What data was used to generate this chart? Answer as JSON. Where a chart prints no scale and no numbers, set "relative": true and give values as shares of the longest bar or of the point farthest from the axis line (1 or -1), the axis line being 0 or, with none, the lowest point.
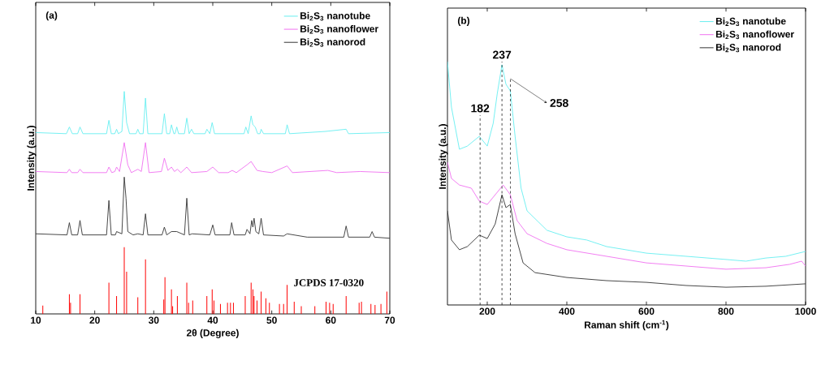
{
  "chart_data": [
    {
      "type": "line",
      "title": "(a)",
      "xlabel": "2θ (Degree)",
      "ylabel": "Intensity (a.u.)",
      "relative": true,
      "xlim": [
        10,
        70
      ],
      "xticks": [
        10,
        20,
        30,
        40,
        50,
        60,
        70
      ],
      "legend": "top right",
      "series": [
        {
          "name": "Bi$_{2}$S$_{3}$ nanotube",
          "color": "#66eef0",
          "x": [
            10,
            15.2,
            15.7,
            16.2,
            17.1,
            17.5,
            18,
            22,
            22.4,
            22.8,
            23.4,
            23.7,
            24,
            24.6,
            25,
            25.4,
            25.9,
            27,
            27.3,
            27.6,
            28.2,
            28.6,
            29,
            31.4,
            31.8,
            32.2,
            32.7,
            33,
            33.4,
            33.6,
            33.9,
            34.2,
            35.2,
            35.6,
            36,
            36.4,
            36.8,
            38.7,
            39,
            39.5,
            39.9,
            40.3,
            45.3,
            45.6,
            46,
            46.5,
            46.8,
            47.2,
            47.6,
            48,
            48.2,
            48.6,
            52.3,
            52.6,
            53,
            59,
            62.6,
            63,
            70
          ],
          "values": [
            0.815,
            0.81,
            0.84,
            0.81,
            0.81,
            0.84,
            0.81,
            0.81,
            0.87,
            0.81,
            0.81,
            0.83,
            0.81,
            0.82,
            1.0,
            0.86,
            0.81,
            0.81,
            0.83,
            0.81,
            0.81,
            0.97,
            0.81,
            0.81,
            0.9,
            0.81,
            0.81,
            0.85,
            0.81,
            0.81,
            0.84,
            0.81,
            0.81,
            0.88,
            0.81,
            0.83,
            0.81,
            0.81,
            0.83,
            0.81,
            0.86,
            0.81,
            0.81,
            0.84,
            0.81,
            0.89,
            0.85,
            0.84,
            0.81,
            0.81,
            0.83,
            0.81,
            0.81,
            0.85,
            0.81,
            0.82,
            0.83,
            0.81,
            0.815
          ]
        },
        {
          "name": "Bi$_{2}$S$_{3}$ nanoflower",
          "color": "#f070f0",
          "x": [
            10,
            15.3,
            15.7,
            16.1,
            17.1,
            17.5,
            18,
            22,
            22.4,
            22.9,
            23.4,
            23.7,
            24.2,
            25,
            25.6,
            26.2,
            27.3,
            27.9,
            28.6,
            29.2,
            31.3,
            31.8,
            32.4,
            33,
            33.5,
            34,
            34.6,
            35.6,
            36.4,
            39,
            40,
            41,
            42.6,
            43.3,
            44,
            45.8,
            46.5,
            47.5,
            48.5,
            50,
            52.6,
            53.5,
            59.5,
            61,
            65,
            70
          ],
          "values": [
            0.64,
            0.635,
            0.65,
            0.635,
            0.635,
            0.65,
            0.635,
            0.635,
            0.66,
            0.635,
            0.64,
            0.66,
            0.64,
            0.77,
            0.67,
            0.635,
            0.65,
            0.64,
            0.77,
            0.635,
            0.64,
            0.7,
            0.645,
            0.66,
            0.64,
            0.65,
            0.635,
            0.66,
            0.635,
            0.64,
            0.66,
            0.635,
            0.635,
            0.645,
            0.635,
            0.67,
            0.685,
            0.645,
            0.64,
            0.635,
            0.665,
            0.635,
            0.645,
            0.635,
            0.64,
            0.635
          ]
        },
        {
          "name": "Bi$_{2}$S$_{3}$ nanorod",
          "color": "#333333",
          "x": [
            10,
            15.3,
            15.7,
            16.1,
            17.1,
            17.5,
            17.9,
            22,
            22.4,
            22.8,
            23.5,
            23.7,
            24.6,
            25,
            25.3,
            25.6,
            26.5,
            27.3,
            28.2,
            28.6,
            29,
            31.4,
            31.8,
            32.2,
            33,
            33.9,
            35.2,
            35.6,
            36,
            36.5,
            39.5,
            40,
            40.4,
            42.9,
            43.2,
            43.6,
            45.5,
            45.8,
            46.3,
            46.6,
            46.8,
            47,
            47.3,
            47.8,
            48.2,
            48.6,
            52,
            52.6,
            56,
            62.2,
            62.6,
            63,
            66.6,
            67,
            67.4,
            70
          ],
          "values": [
            0.36,
            0.355,
            0.41,
            0.355,
            0.355,
            0.42,
            0.355,
            0.355,
            0.51,
            0.355,
            0.355,
            0.37,
            0.36,
            0.615,
            0.52,
            0.37,
            0.355,
            0.36,
            0.355,
            0.45,
            0.355,
            0.355,
            0.39,
            0.355,
            0.37,
            0.37,
            0.355,
            0.52,
            0.355,
            0.36,
            0.355,
            0.4,
            0.355,
            0.355,
            0.41,
            0.355,
            0.355,
            0.38,
            0.36,
            0.42,
            0.39,
            0.43,
            0.37,
            0.36,
            0.43,
            0.355,
            0.35,
            0.36,
            0.345,
            0.345,
            0.395,
            0.345,
            0.345,
            0.37,
            0.345,
            0.34
          ]
        },
        {
          "name": "JCPDS 17-0320",
          "type": "bar",
          "color": "#ff0000",
          "x": [
            11.2,
            15.7,
            15.9,
            17.5,
            22.4,
            23.7,
            25.0,
            25.4,
            27.3,
            28.6,
            31.7,
            31.9,
            33.0,
            33.2,
            34.0,
            35.6,
            35.9,
            36.6,
            39.0,
            39.9,
            40.2,
            41.3,
            42.5,
            43.0,
            43.5,
            45.5,
            46.5,
            46.8,
            47.0,
            47.5,
            48.2,
            49.0,
            49.6,
            51.3,
            52.0,
            52.6,
            53.8,
            55.0,
            57.3,
            59.2,
            59.8,
            60.4,
            62.6,
            64.8,
            65.2,
            66.8,
            67.5,
            68.5,
            69.5
          ],
          "values": [
            0.037,
            0.088,
            0.05,
            0.088,
            0.14,
            0.08,
            0.3,
            0.19,
            0.075,
            0.245,
            0.065,
            0.165,
            0.11,
            0.035,
            0.08,
            0.14,
            0.05,
            0.06,
            0.08,
            0.11,
            0.06,
            0.045,
            0.05,
            0.05,
            0.05,
            0.08,
            0.14,
            0.11,
            0.08,
            0.06,
            0.1,
            0.07,
            0.05,
            0.045,
            0.045,
            0.13,
            0.055,
            0.035,
            0.035,
            0.055,
            0.05,
            0.045,
            0.08,
            0.05,
            0.055,
            0.045,
            0.04,
            0.045,
            0.1
          ]
        }
      ]
    },
    {
      "type": "line",
      "title": "(b)",
      "xlabel": "Raman shift (cm$^{-1}$)",
      "ylabel": "Intensity (a.u.)",
      "relative": true,
      "xlim": [
        100,
        1000
      ],
      "xticks": [
        200,
        400,
        600,
        800,
        1000
      ],
      "legend": "top right",
      "ref_lines": [
        {
          "axis": "x",
          "value": 182,
          "label": "182",
          "line_style": "dashed",
          "color": "#000000"
        },
        {
          "axis": "x",
          "value": 237,
          "label": "237",
          "line_style": "dashed",
          "color": "#000000"
        },
        {
          "axis": "x",
          "value": 258,
          "label": "258",
          "line_style": "dashed",
          "color": "#000000"
        }
      ],
      "series": [
        {
          "name": "Bi$_{2}$S$_{3}$ nanotube",
          "color": "#66eef0",
          "x": [
            100,
            110,
            130,
            150,
            180,
            200,
            215,
            225,
            237,
            247,
            258,
            270,
            285,
            300,
            350,
            400,
            450,
            500,
            600,
            700,
            800,
            850,
            900,
            950,
            1000
          ],
          "values": [
            1.0,
            0.813,
            0.64,
            0.653,
            0.693,
            0.653,
            0.747,
            0.867,
            0.987,
            0.907,
            0.88,
            0.693,
            0.48,
            0.387,
            0.307,
            0.28,
            0.267,
            0.24,
            0.213,
            0.2,
            0.187,
            0.18,
            0.193,
            0.2,
            0.22
          ]
        },
        {
          "name": "Bi$_{2}$S$_{3}$ nanoflower",
          "color": "#f070f0",
          "x": [
            100,
            110,
            130,
            160,
            180,
            200,
            220,
            240,
            258,
            275,
            300,
            350,
            400,
            500,
            600,
            700,
            800,
            900,
            960,
            990,
            1000
          ],
          "values": [
            0.587,
            0.52,
            0.493,
            0.48,
            0.427,
            0.413,
            0.453,
            0.493,
            0.453,
            0.347,
            0.293,
            0.253,
            0.227,
            0.2,
            0.173,
            0.16,
            0.147,
            0.153,
            0.167,
            0.18,
            0.16
          ]
        },
        {
          "name": "Bi$_{2}$S$_{3}$ nanorod",
          "color": "#333333",
          "x": [
            100,
            110,
            130,
            150,
            180,
            200,
            220,
            237,
            247,
            258,
            270,
            290,
            320,
            400,
            500,
            600,
            700,
            800,
            900,
            1000
          ],
          "values": [
            0.387,
            0.267,
            0.227,
            0.24,
            0.287,
            0.273,
            0.333,
            0.453,
            0.4,
            0.413,
            0.293,
            0.173,
            0.133,
            0.113,
            0.1,
            0.093,
            0.08,
            0.073,
            0.077,
            0.087
          ]
        }
      ]
    }
  ]
}
